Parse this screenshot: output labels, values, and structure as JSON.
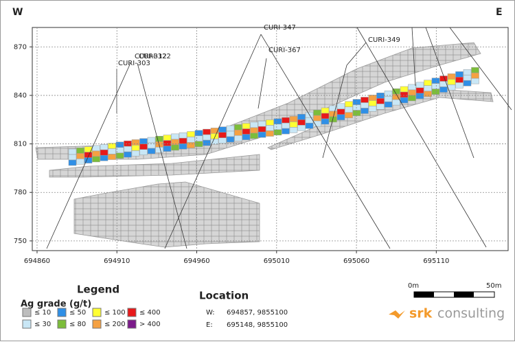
{
  "chart_data": {
    "type": "section",
    "west_label": "W",
    "east_label": "E",
    "xlim": [
      694857,
      695155
    ],
    "ylim": [
      744,
      882
    ],
    "xticks": [
      694860,
      694910,
      694960,
      695010,
      695060,
      695110
    ],
    "yticks": [
      750,
      780,
      810,
      840,
      870
    ],
    "grid": true,
    "drillholes": [
      "CURI-303",
      "CURI-312",
      "CURI-322",
      "CURI-367",
      "CURI-349",
      "CURI-347"
    ],
    "legend": {
      "title": "Legend",
      "subtitle": "Ag grade (g/t)",
      "items": [
        {
          "label": "≤ 10",
          "color": "#bdbdbd"
        },
        {
          "label": "≤ 30",
          "color": "#c9e7f6"
        },
        {
          "label": "≤ 50",
          "color": "#2f8fe6"
        },
        {
          "label": "≤ 80",
          "color": "#7cbd3a"
        },
        {
          "label": "≤ 100",
          "color": "#ffff33"
        },
        {
          "label": "≤ 200",
          "color": "#f5a142"
        },
        {
          "label": "≤ 400",
          "color": "#e8191a"
        },
        {
          "label": "> 400",
          "color": "#7b1a8a"
        }
      ]
    },
    "location": {
      "title": "Location",
      "rows": [
        {
          "key": "W:",
          "value": "694857, 9855100"
        },
        {
          "key": "E:",
          "value": "695148, 9855100"
        }
      ]
    },
    "scale_bar": {
      "start": "0m",
      "end": "50m"
    },
    "logo": {
      "mark": "srk",
      "word": "consulting"
    }
  }
}
